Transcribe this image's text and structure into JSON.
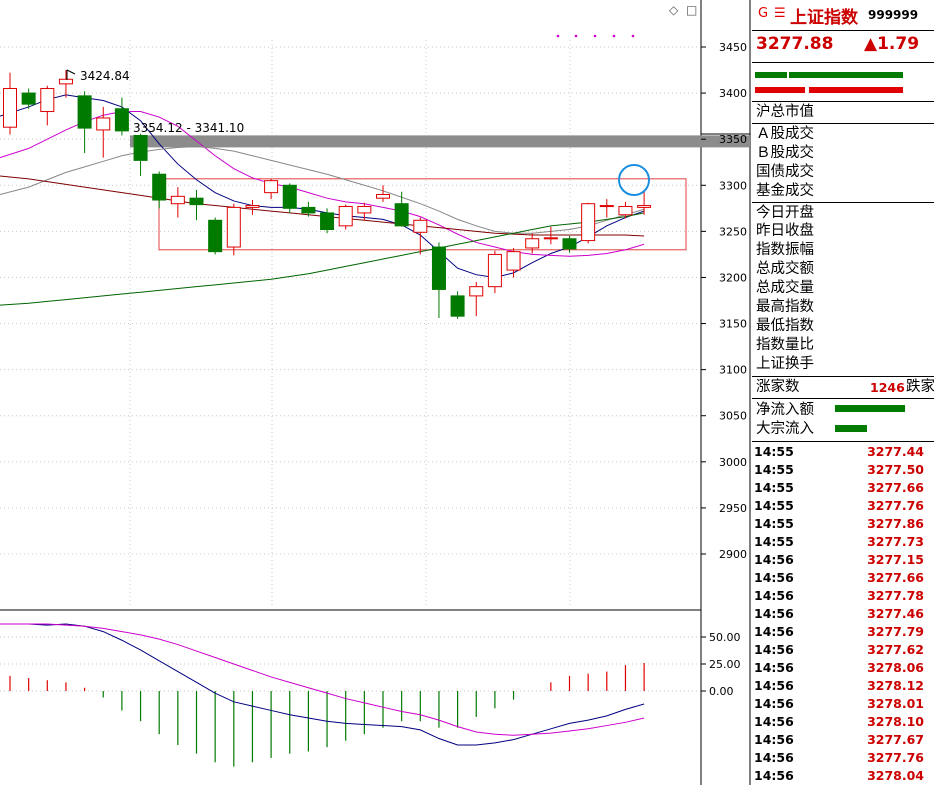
{
  "header": {
    "g_icon": "G",
    "list_icon": "☰",
    "index_name": "上证指数",
    "index_code": "999999",
    "last_price": "3277.88",
    "change": "▲1.79"
  },
  "toolbar": {
    "diamond_icon": "◇",
    "square_icon": "□"
  },
  "main_chart": {
    "y_axis_ticks": [
      "3450",
      "3400",
      "3350",
      "3300",
      "3250",
      "3200",
      "3150",
      "3100",
      "3050",
      "3000",
      "2950",
      "2900"
    ],
    "high_annotation": "3424.84",
    "gap_label": "3354.12 - 3341.10",
    "colors": {
      "up": "#e00000",
      "down": "#007b00"
    }
  },
  "sub_chart": {
    "y_axis_ticks": [
      "50.00",
      "25.00",
      "0.00"
    ]
  },
  "chart_data": {
    "type": "candlestick",
    "ylim": [
      2860,
      3475
    ],
    "candles": [
      {
        "o": 3363,
        "c": 3405,
        "h": 3422,
        "l": 3355
      },
      {
        "o": 3400,
        "c": 3388,
        "h": 3405,
        "l": 3383
      },
      {
        "o": 3380,
        "c": 3405,
        "h": 3408,
        "l": 3365
      },
      {
        "o": 3410,
        "c": 3415,
        "h": 3425,
        "l": 3395
      },
      {
        "o": 3397,
        "c": 3362,
        "h": 3402,
        "l": 3335
      },
      {
        "o": 3360,
        "c": 3373,
        "h": 3385,
        "l": 3330
      },
      {
        "o": 3383,
        "c": 3359,
        "h": 3395,
        "l": 3354
      },
      {
        "o": 3354,
        "c": 3327,
        "h": 3356,
        "l": 3310
      },
      {
        "o": 3312,
        "c": 3284,
        "h": 3315,
        "l": 3275
      },
      {
        "o": 3280,
        "c": 3288,
        "h": 3298,
        "l": 3265
      },
      {
        "o": 3286,
        "c": 3279,
        "h": 3295,
        "l": 3262
      },
      {
        "o": 3262,
        "c": 3228,
        "h": 3265,
        "l": 3225
      },
      {
        "o": 3233,
        "c": 3276,
        "h": 3280,
        "l": 3224
      },
      {
        "o": 3276,
        "c": 3278,
        "h": 3284,
        "l": 3268
      },
      {
        "o": 3292,
        "c": 3305,
        "h": 3307,
        "l": 3285
      },
      {
        "o": 3300,
        "c": 3275,
        "h": 3302,
        "l": 3270
      },
      {
        "o": 3276,
        "c": 3270,
        "h": 3282,
        "l": 3266
      },
      {
        "o": 3270,
        "c": 3252,
        "h": 3275,
        "l": 3248
      },
      {
        "o": 3256,
        "c": 3277,
        "h": 3279,
        "l": 3252
      },
      {
        "o": 3270,
        "c": 3277,
        "h": 3281,
        "l": 3262
      },
      {
        "o": 3286,
        "c": 3290,
        "h": 3300,
        "l": 3282
      },
      {
        "o": 3280,
        "c": 3256,
        "h": 3293,
        "l": 3255
      },
      {
        "o": 3249,
        "c": 3262,
        "h": 3265,
        "l": 3225
      },
      {
        "o": 3233,
        "c": 3187,
        "h": 3238,
        "l": 3156
      },
      {
        "o": 3180,
        "c": 3158,
        "h": 3185,
        "l": 3155
      },
      {
        "o": 3180,
        "c": 3190,
        "h": 3195,
        "l": 3158
      },
      {
        "o": 3190,
        "c": 3225,
        "h": 3229,
        "l": 3183
      },
      {
        "o": 3208,
        "c": 3228,
        "h": 3232,
        "l": 3200
      },
      {
        "o": 3232,
        "c": 3242,
        "h": 3248,
        "l": 3226
      },
      {
        "o": 3242,
        "c": 3243,
        "h": 3255,
        "l": 3236
      },
      {
        "o": 3242,
        "c": 3231,
        "h": 3245,
        "l": 3227
      },
      {
        "o": 3240,
        "c": 3280,
        "h": 3281,
        "l": 3237
      },
      {
        "o": 3277,
        "c": 3278,
        "h": 3285,
        "l": 3265
      },
      {
        "o": 3268,
        "c": 3277,
        "h": 3282,
        "l": 3264
      },
      {
        "o": 3276,
        "c": 3278,
        "h": 3293,
        "l": 3268
      }
    ],
    "ma_lines": [
      {
        "color": "#000080",
        "values": [
          3375,
          3385,
          3393,
          3398,
          3395,
          3392,
          3385,
          3370,
          3345,
          3323,
          3306,
          3292,
          3283,
          3278,
          3276,
          3276,
          3274,
          3270,
          3267,
          3265,
          3263,
          3257,
          3246,
          3228,
          3210,
          3203,
          3200,
          3205,
          3216,
          3226,
          3233,
          3244,
          3256,
          3265,
          3272
        ]
      },
      {
        "color": "#cc00cc",
        "values": [
          3330,
          3340,
          3350,
          3360,
          3369,
          3376,
          3380,
          3380,
          3374,
          3364,
          3348,
          3332,
          3318,
          3308,
          3302,
          3298,
          3292,
          3286,
          3282,
          3280,
          3276,
          3272,
          3266,
          3257,
          3247,
          3238,
          3233,
          3228,
          3225,
          3224,
          3223,
          3224,
          3226,
          3230,
          3236
        ]
      },
      {
        "color": "#888888",
        "values": [
          3290,
          3298,
          3306,
          3314,
          3320,
          3326,
          3332,
          3336,
          3339,
          3341,
          3342,
          3340,
          3337,
          3332,
          3327,
          3322,
          3317,
          3312,
          3306,
          3300,
          3294,
          3287,
          3280,
          3272,
          3263,
          3256,
          3250,
          3248,
          3248,
          3250,
          3252,
          3256,
          3262,
          3268,
          3274
        ]
      },
      {
        "color": "#800000",
        "values": [
          3310,
          3307,
          3304,
          3301,
          3298,
          3295,
          3292,
          3289,
          3286,
          3283,
          3280,
          3278,
          3276,
          3274,
          3272,
          3270,
          3268,
          3266,
          3264,
          3262,
          3260,
          3258,
          3256,
          3254,
          3252,
          3250,
          3248,
          3247,
          3246,
          3246,
          3246,
          3246,
          3246,
          3246,
          3245
        ]
      },
      {
        "color": "#006400",
        "values": [
          3170,
          3172,
          3174,
          3176,
          3178,
          3180,
          3182,
          3184,
          3186,
          3188,
          3190,
          3192,
          3194,
          3196,
          3198,
          3201,
          3204,
          3208,
          3212,
          3216,
          3220,
          3224,
          3228,
          3232,
          3236,
          3240,
          3244,
          3248,
          3252,
          3256,
          3258,
          3260,
          3263,
          3266,
          3270
        ]
      }
    ],
    "gap_zone": {
      "from": 3341.1,
      "to": 3354.12
    },
    "rect_zone": {
      "low": 3230,
      "high": 3307
    },
    "macd": {
      "ylim": [
        -55,
        75
      ],
      "dif": [
        62,
        62,
        61,
        62,
        60,
        55,
        47,
        38,
        28,
        18,
        8,
        -2,
        -10,
        -14,
        -18,
        -22,
        -25,
        -28,
        -30,
        -31,
        -32,
        -33,
        -36,
        -44,
        -50,
        -50,
        -48,
        -45,
        -40,
        -35,
        -30,
        -27,
        -23,
        -17,
        -12
      ],
      "dea": [
        62,
        62,
        62,
        61,
        60,
        58,
        55,
        52,
        48,
        43,
        37,
        31,
        25,
        19,
        13,
        8,
        3,
        -2,
        -7,
        -11,
        -15,
        -19,
        -22,
        -27,
        -33,
        -38,
        -40,
        -41,
        -40,
        -39,
        -37,
        -35,
        -32,
        -29,
        -25
      ],
      "hist": [
        14,
        12,
        10,
        8,
        3,
        -6,
        -18,
        -28,
        -40,
        -50,
        -58,
        -66,
        -70,
        -66,
        -62,
        -58,
        -56,
        -52,
        -46,
        -40,
        -34,
        -28,
        -28,
        -34,
        -34,
        -24,
        -16,
        -8,
        0,
        8,
        14,
        16,
        18,
        24,
        26
      ]
    }
  },
  "side_panel": {
    "labels": {
      "total_cap": "沪总市值",
      "a_share_vol": "Ａ股成交",
      "b_share_vol": "Ｂ股成交",
      "bond_vol": "国债成交",
      "fund_vol": "基金成交",
      "open": "今日开盘",
      "prev_close": "昨日收盘",
      "amplitude": "指数振幅",
      "turnover_amount": "总成交额",
      "turnover_volume": "总成交量",
      "high": "最高指数",
      "low": "最低指数",
      "volume_ratio": "指数量比",
      "turnover_rate": "上证换手",
      "up_count": "涨家数",
      "up_count_value": "1246",
      "down_count_label": "跌家",
      "net_inflow": "净流入额",
      "block_inflow": "大宗流入"
    },
    "ticks": [
      {
        "time": "14:55",
        "price": "3277.44"
      },
      {
        "time": "14:55",
        "price": "3277.50"
      },
      {
        "time": "14:55",
        "price": "3277.66"
      },
      {
        "time": "14:55",
        "price": "3277.76"
      },
      {
        "time": "14:55",
        "price": "3277.86"
      },
      {
        "time": "14:55",
        "price": "3277.73"
      },
      {
        "time": "14:56",
        "price": "3277.15"
      },
      {
        "time": "14:56",
        "price": "3277.66"
      },
      {
        "time": "14:56",
        "price": "3277.78"
      },
      {
        "time": "14:56",
        "price": "3277.46"
      },
      {
        "time": "14:56",
        "price": "3277.79"
      },
      {
        "time": "14:56",
        "price": "3277.62"
      },
      {
        "time": "14:56",
        "price": "3278.06"
      },
      {
        "time": "14:56",
        "price": "3278.12"
      },
      {
        "time": "14:56",
        "price": "3278.01"
      },
      {
        "time": "14:56",
        "price": "3278.10"
      },
      {
        "time": "14:56",
        "price": "3277.67"
      },
      {
        "time": "14:56",
        "price": "3277.76"
      },
      {
        "time": "14:56",
        "price": "3278.04"
      }
    ]
  }
}
